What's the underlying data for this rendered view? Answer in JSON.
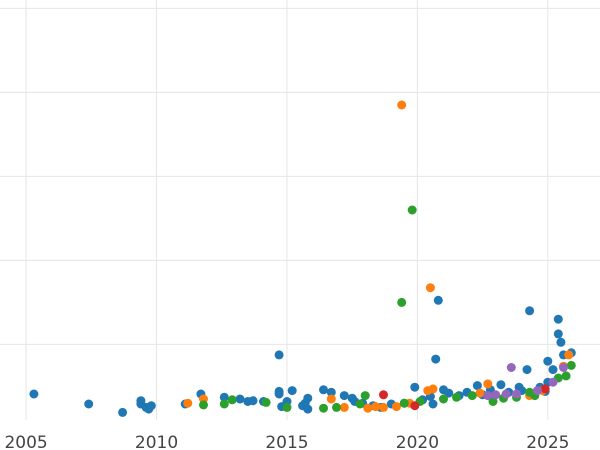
{
  "chart_data": {
    "type": "scatter",
    "title": "",
    "xlabel": "",
    "ylabel": "",
    "xlim": [
      2004,
      2027
    ],
    "ylim": [
      0,
      10
    ],
    "grid": true,
    "x_ticks": [
      "2005",
      "2010",
      "2015",
      "2020",
      "2025"
    ],
    "x_tick_values": [
      2005,
      2010,
      2015,
      2020,
      2025
    ],
    "y_gridlines": [
      1.8,
      3.8,
      5.8,
      7.8,
      9.8
    ],
    "colors": {
      "blue": "#1f77b4",
      "orange": "#ff7f0e",
      "green": "#2ca02c",
      "red": "#d62728",
      "purple": "#9467bd"
    },
    "series": [
      {
        "color": "blue",
        "points": [
          [
            2005.3,
            0.62
          ],
          [
            2007.4,
            0.38
          ],
          [
            2008.7,
            0.18
          ],
          [
            2009.4,
            0.46
          ],
          [
            2009.4,
            0.38
          ],
          [
            2009.6,
            0.3
          ],
          [
            2009.7,
            0.26
          ],
          [
            2009.8,
            0.34
          ],
          [
            2011.1,
            0.38
          ],
          [
            2011.7,
            0.62
          ],
          [
            2012.6,
            0.54
          ],
          [
            2013.2,
            0.5
          ],
          [
            2013.5,
            0.44
          ],
          [
            2013.7,
            0.46
          ],
          [
            2014.1,
            0.44
          ],
          [
            2014.7,
            1.55
          ],
          [
            2014.7,
            0.68
          ],
          [
            2014.7,
            0.62
          ],
          [
            2014.8,
            0.32
          ],
          [
            2015.0,
            0.44
          ],
          [
            2015.2,
            0.7
          ],
          [
            2015.6,
            0.34
          ],
          [
            2015.7,
            0.4
          ],
          [
            2015.8,
            0.52
          ],
          [
            2015.8,
            0.26
          ],
          [
            2016.4,
            0.72
          ],
          [
            2016.7,
            0.66
          ],
          [
            2017.2,
            0.58
          ],
          [
            2017.5,
            0.52
          ],
          [
            2017.6,
            0.44
          ],
          [
            2017.9,
            0.4
          ],
          [
            2018.3,
            0.34
          ],
          [
            2018.6,
            0.3
          ],
          [
            2019.0,
            0.38
          ],
          [
            2019.5,
            0.4
          ],
          [
            2019.9,
            0.78
          ],
          [
            2020.2,
            0.48
          ],
          [
            2020.5,
            0.56
          ],
          [
            2020.6,
            0.38
          ],
          [
            2020.7,
            1.45
          ],
          [
            2020.8,
            2.85
          ],
          [
            2021.0,
            0.72
          ],
          [
            2021.2,
            0.64
          ],
          [
            2021.6,
            0.58
          ],
          [
            2021.9,
            0.66
          ],
          [
            2022.3,
            0.82
          ],
          [
            2022.5,
            0.6
          ],
          [
            2022.8,
            0.72
          ],
          [
            2023.2,
            0.84
          ],
          [
            2023.5,
            0.66
          ],
          [
            2023.9,
            0.78
          ],
          [
            2024.0,
            0.7
          ],
          [
            2024.2,
            1.2
          ],
          [
            2024.3,
            2.6
          ],
          [
            2024.7,
            0.78
          ],
          [
            2025.0,
            1.4
          ],
          [
            2025.0,
            0.9
          ],
          [
            2025.4,
            2.4
          ],
          [
            2025.4,
            2.05
          ],
          [
            2025.5,
            1.85
          ],
          [
            2025.6,
            1.55
          ],
          [
            2025.9,
            1.6
          ],
          [
            2025.2,
            1.2
          ],
          [
            2024.9,
            0.68
          ]
        ]
      },
      {
        "color": "orange",
        "points": [
          [
            2011.2,
            0.4
          ],
          [
            2011.8,
            0.5
          ],
          [
            2016.7,
            0.5
          ],
          [
            2017.2,
            0.3
          ],
          [
            2018.1,
            0.28
          ],
          [
            2018.4,
            0.32
          ],
          [
            2018.7,
            0.3
          ],
          [
            2019.2,
            0.32
          ],
          [
            2019.4,
            7.5
          ],
          [
            2019.7,
            0.4
          ],
          [
            2020.4,
            0.7
          ],
          [
            2020.5,
            3.15
          ],
          [
            2020.6,
            0.74
          ],
          [
            2022.4,
            0.64
          ],
          [
            2022.7,
            0.86
          ],
          [
            2024.3,
            0.58
          ],
          [
            2024.8,
            0.7
          ],
          [
            2025.6,
            1.28
          ],
          [
            2025.8,
            1.55
          ]
        ]
      },
      {
        "color": "green",
        "points": [
          [
            2011.8,
            0.36
          ],
          [
            2012.6,
            0.38
          ],
          [
            2012.9,
            0.48
          ],
          [
            2014.2,
            0.42
          ],
          [
            2015.0,
            0.3
          ],
          [
            2016.4,
            0.28
          ],
          [
            2016.9,
            0.3
          ],
          [
            2017.8,
            0.38
          ],
          [
            2018.0,
            0.58
          ],
          [
            2019.4,
            2.8
          ],
          [
            2019.5,
            0.4
          ],
          [
            2019.8,
            5.0
          ],
          [
            2020.1,
            0.44
          ],
          [
            2021.0,
            0.5
          ],
          [
            2021.5,
            0.54
          ],
          [
            2022.1,
            0.58
          ],
          [
            2022.9,
            0.44
          ],
          [
            2023.3,
            0.52
          ],
          [
            2023.8,
            0.54
          ],
          [
            2024.3,
            0.66
          ],
          [
            2024.5,
            0.58
          ],
          [
            2025.4,
            1.0
          ],
          [
            2025.7,
            1.05
          ],
          [
            2025.9,
            1.3
          ]
        ]
      },
      {
        "color": "red",
        "points": [
          [
            2018.7,
            0.6
          ],
          [
            2019.9,
            0.34
          ],
          [
            2024.9,
            0.74
          ]
        ]
      },
      {
        "color": "purple",
        "points": [
          [
            2022.7,
            0.58
          ],
          [
            2023.0,
            0.6
          ],
          [
            2023.4,
            0.62
          ],
          [
            2023.6,
            1.25
          ],
          [
            2023.8,
            0.62
          ],
          [
            2024.6,
            0.7
          ],
          [
            2025.2,
            0.9
          ],
          [
            2025.6,
            1.25
          ]
        ]
      }
    ]
  }
}
